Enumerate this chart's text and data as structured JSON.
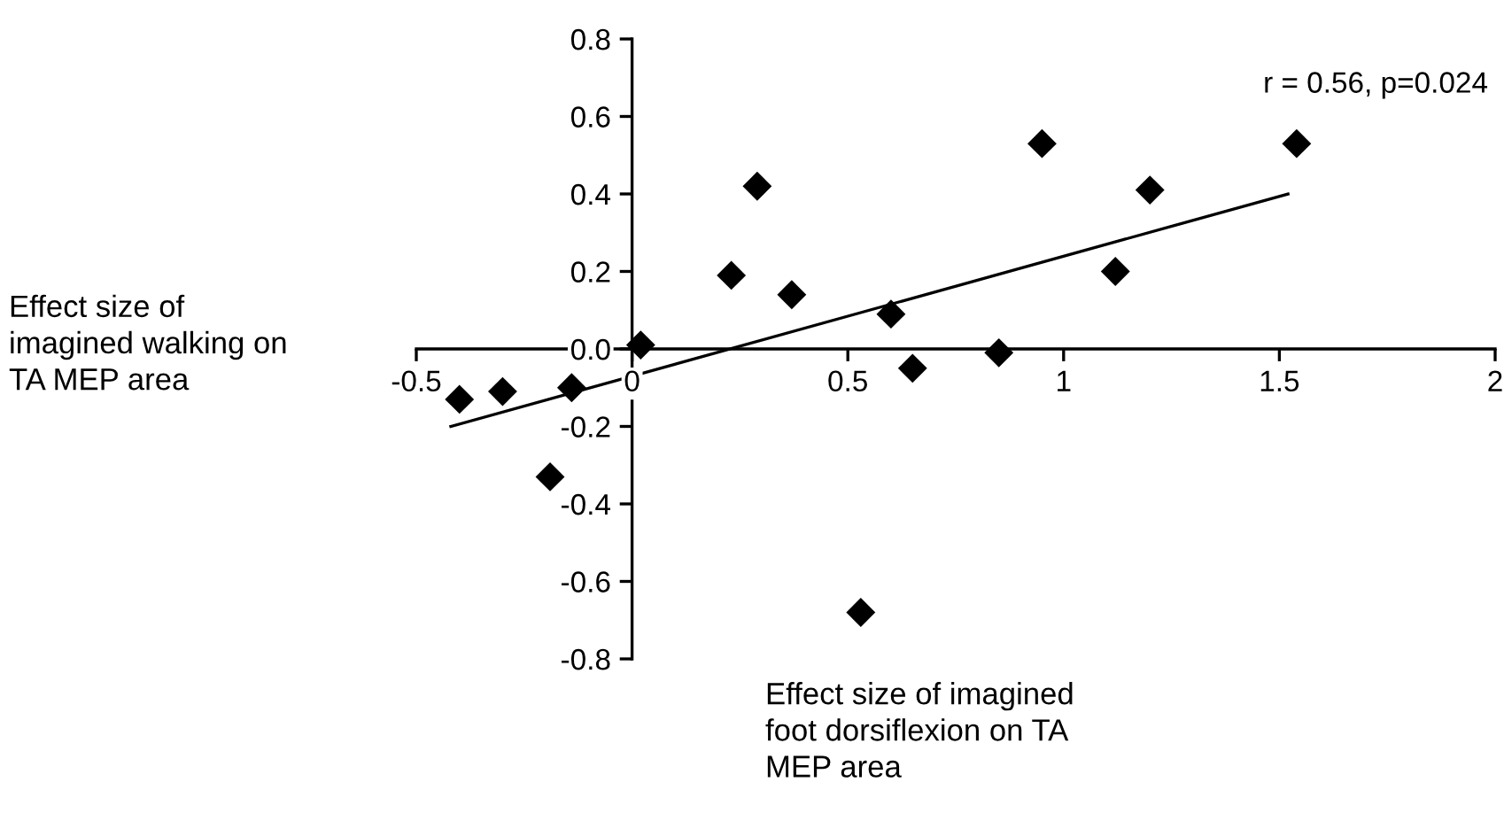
{
  "chart_data": {
    "type": "scatter",
    "xlabel": "Effect size of imagined\nfoot dorsiflexion on TA\nMEP area",
    "ylabel": "Effect size of\nimagined walking on\nTA MEP area",
    "annotations": [
      "r = 0.56, p=0.024"
    ],
    "series": [
      {
        "color": "#000000",
        "marker": "diamond",
        "x": [
          -0.4,
          -0.3,
          -0.14,
          -0.19,
          0.02,
          0.23,
          0.29,
          0.37,
          0.6,
          0.65,
          0.53,
          0.85,
          0.95,
          1.12,
          1.2,
          1.54
        ],
        "values": [
          -0.13,
          -0.11,
          -0.1,
          -0.33,
          0.01,
          0.19,
          0.42,
          0.14,
          0.09,
          -0.05,
          -0.68,
          -0.01,
          0.53,
          0.2,
          0.41,
          0.53
        ]
      },
      {
        "type": "line",
        "color": "#000000",
        "marker": "none",
        "line_style": "solid",
        "x": [
          -0.42,
          1.52
        ],
        "values": [
          -0.2,
          0.4
        ]
      }
    ],
    "xlim": [
      -0.5,
      2
    ],
    "xticks": [
      -0.5,
      0,
      0.5,
      1,
      1.5,
      2
    ],
    "ylim": [
      -0.8,
      0.8
    ],
    "yticks": [
      {
        "value": -0.8,
        "label": "-0.8"
      },
      {
        "value": -0.6,
        "label": "-0.6"
      },
      {
        "value": -0.4,
        "label": "-0.4"
      },
      {
        "value": -0.2,
        "label": "-0.2"
      },
      {
        "value": 0.0,
        "label": "0.0"
      },
      {
        "value": 0.2,
        "label": "0.2"
      },
      {
        "value": 0.4,
        "label": "0.4"
      },
      {
        "value": 0.6,
        "label": "0.6"
      },
      {
        "value": 0.8,
        "label": "0.8"
      }
    ],
    "grid": false,
    "legend": false
  }
}
